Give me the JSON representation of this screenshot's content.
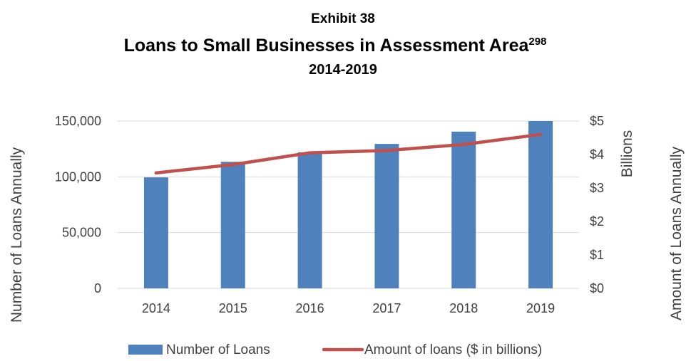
{
  "exhibit": "Exhibit 38",
  "title": "Loans to Small Businesses in Assessment Area",
  "title_superscript": "298",
  "subtitle": "2014-2019",
  "chart_data": {
    "type": "bar",
    "categories": [
      "2014",
      "2015",
      "2016",
      "2017",
      "2018",
      "2019"
    ],
    "series": [
      {
        "name": "Number of Loans",
        "type": "bar",
        "axis": "left",
        "color": "#4F81BD",
        "values": [
          99500,
          113500,
          122000,
          129500,
          140500,
          150000
        ]
      },
      {
        "name": "Amount of loans ($ in billions)",
        "type": "line",
        "axis": "right",
        "color": "#C0504D",
        "values": [
          3.45,
          3.7,
          4.05,
          4.12,
          4.3,
          4.6
        ]
      }
    ],
    "y_left": {
      "label": "Number of Loans Annually",
      "ylim": [
        0,
        150000
      ],
      "ticks": [
        0,
        50000,
        100000,
        150000
      ],
      "tick_labels": [
        "0",
        "50,000",
        "100,000",
        "150,000"
      ]
    },
    "y_right": {
      "label": "Amount of Loans Annually",
      "unit_label": "Billions",
      "ylim": [
        0,
        5
      ],
      "ticks": [
        0,
        1,
        2,
        3,
        4,
        5
      ],
      "tick_labels": [
        "$0",
        "$1",
        "$2",
        "$3",
        "$4",
        "$5"
      ]
    },
    "grid": true,
    "legend_position": "bottom"
  }
}
